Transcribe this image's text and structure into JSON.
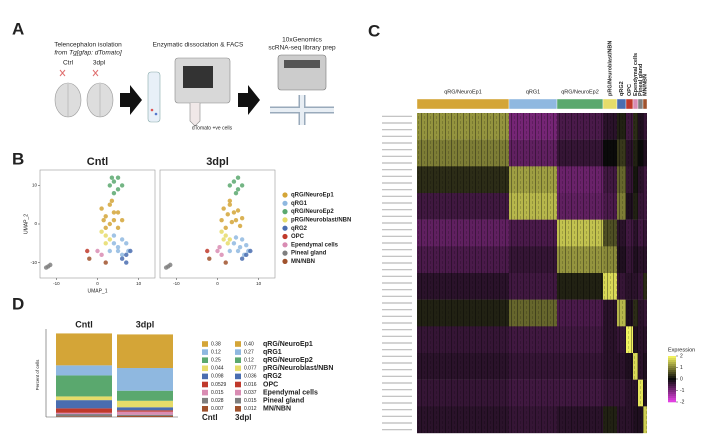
{
  "panel_labels": [
    "A",
    "B",
    "C",
    "D"
  ],
  "schematic": {
    "step1": [
      "Telencephalon isolation",
      "from Tg[gfap: dTomato]"
    ],
    "conditions": [
      "Ctrl",
      "3dpl"
    ],
    "step2": "Enzymatic dissociation & FACS",
    "sorted": "dTomato +ve cells",
    "step3": [
      "10xGenomics",
      "scRNA-seq library prep"
    ]
  },
  "chart_data": [
    {
      "type": "scatter",
      "xlabel": "UMAP_1",
      "ylabel": "UMAP_2",
      "xlim": [
        -14,
        14
      ],
      "ylim": [
        -14,
        14
      ],
      "xticks": [
        -10,
        0,
        10
      ],
      "yticks": [
        -10,
        0,
        10
      ],
      "series": [
        {
          "name": "qRG/NeuroEp1",
          "color": "#d4a537"
        },
        {
          "name": "qRG1",
          "color": "#8fb8e0"
        },
        {
          "name": "qRG/NeuroEp2",
          "color": "#5aa86e"
        },
        {
          "name": "pRG/Neuroblast/NBN",
          "color": "#e6dc6a"
        },
        {
          "name": "qRG2",
          "color": "#4a6db0"
        },
        {
          "name": "OPC",
          "color": "#c0392b"
        },
        {
          "name": "Ependymal cells",
          "color": "#d98cb3"
        },
        {
          "name": "Pineal gland",
          "color": "#7f7f7f"
        },
        {
          "name": "MN/NBN",
          "color": "#a0522d"
        }
      ],
      "panels": [
        {
          "title": "Cntl",
          "points": [
            {
              "x": [
                1,
                2,
                3,
                4,
                5,
                2,
                3,
                4,
                6,
                1.5,
                3.5,
                5
              ],
              "y": [
                4,
                2,
                5,
                1,
                3,
                -1,
                0,
                3,
                1,
                1,
                6,
                -1
              ]
            },
            {
              "x": [
                4,
                5,
                6,
                7,
                5,
                6,
                3,
                4,
                7.5
              ],
              "y": [
                -5,
                -6,
                -4,
                -5,
                -7,
                -8,
                -7,
                -3,
                -7
              ]
            },
            {
              "x": [
                3,
                4,
                5,
                6,
                4,
                5,
                3.5
              ],
              "y": [
                10,
                11,
                9,
                10,
                8,
                12,
                12
              ]
            },
            {
              "x": [
                2,
                3,
                1,
                2
              ],
              "y": [
                -3,
                -4,
                -2,
                -5
              ]
            },
            {
              "x": [
                6,
                7,
                8,
                7
              ],
              "y": [
                -9,
                -8,
                -7,
                -10
              ]
            },
            {
              "x": [
                -2.5
              ],
              "y": [
                -7
              ]
            },
            {
              "x": [
                0,
                1
              ],
              "y": [
                -7,
                -8
              ]
            },
            {
              "x": [
                -12,
                -11.5,
                -12.5
              ],
              "y": [
                -11,
                -10.6,
                -11.3
              ]
            },
            {
              "x": [
                -2,
                2
              ],
              "y": [
                -9,
                -10
              ]
            }
          ]
        },
        {
          "title": "3dpl",
          "points": [
            {
              "x": [
                1.5,
                2.5,
                3,
                4.5,
                5,
                2,
                3.5,
                4,
                6,
                1,
                3,
                5.5
              ],
              "y": [
                4,
                2.5,
                5,
                1,
                3.5,
                -1,
                0.5,
                3,
                1.5,
                1,
                6,
                -0.5
              ]
            },
            {
              "x": [
                4,
                5.5,
                6,
                7,
                5,
                6.5,
                3,
                4.5,
                7.5
              ],
              "y": [
                -5,
                -6,
                -4,
                -5.5,
                -7,
                -8,
                -7,
                -3.5,
                -7
              ]
            },
            {
              "x": [
                3,
                4,
                5,
                6,
                4.5,
                5
              ],
              "y": [
                10,
                11,
                9,
                10,
                8,
                12
              ]
            },
            {
              "x": [
                2,
                3,
                1,
                2.5,
                1.5
              ],
              "y": [
                -3,
                -4,
                -2,
                -5,
                -4
              ]
            },
            {
              "x": [
                6,
                7,
                8
              ],
              "y": [
                -9,
                -8,
                -7
              ]
            },
            {
              "x": [
                -2.5
              ],
              "y": [
                -7
              ]
            },
            {
              "x": [
                0,
                1,
                0.5
              ],
              "y": [
                -7,
                -8,
                -6
              ]
            },
            {
              "x": [
                -12,
                -11.5,
                -12.5
              ],
              "y": [
                -11,
                -10.6,
                -11.3
              ]
            },
            {
              "x": [
                -2,
                2
              ],
              "y": [
                -9,
                -10
              ]
            }
          ]
        }
      ]
    },
    {
      "type": "heatmap",
      "legend_title": "Expression",
      "clim": [
        -2,
        2
      ],
      "cticks": [
        2,
        1,
        0,
        -1,
        -2
      ],
      "categories": [
        "qRG/NeuroEp1",
        "qRG1",
        "qRG/NeuroEp2",
        "pRG/Neuroblast/NBN",
        "qRG2",
        "OPC",
        "Ependymal cells",
        "Pineal gland",
        "MN/NBN"
      ],
      "colors": [
        "#d4a537",
        "#8fb8e0",
        "#5aa86e",
        "#e6dc6a",
        "#4a6db0",
        "#c0392b",
        "#d98cb3",
        "#7f7f7f",
        "#a0522d"
      ],
      "values": [
        [
          1.2,
          -1.0,
          -0.6,
          -0.3,
          0.2,
          -0.5,
          0.3,
          -0.2,
          -0.4
        ],
        [
          1.0,
          -0.8,
          -0.4,
          0.0,
          0.4,
          -0.3,
          0.2,
          0.0,
          -0.2
        ],
        [
          0.3,
          1.3,
          -0.9,
          -0.5,
          0.8,
          -0.4,
          0.1,
          -0.3,
          -0.5
        ],
        [
          -0.5,
          1.5,
          -0.8,
          -0.6,
          1.0,
          -0.2,
          0.2,
          -0.4,
          -0.5
        ],
        [
          -0.8,
          -0.6,
          1.6,
          0.6,
          -0.3,
          -0.5,
          -0.3,
          -0.5,
          -0.4
        ],
        [
          -0.6,
          -0.4,
          1.2,
          1.1,
          -0.2,
          -0.4,
          -0.2,
          -0.3,
          -0.3
        ],
        [
          -0.3,
          -0.5,
          0.2,
          1.8,
          -0.4,
          -0.3,
          -0.3,
          -0.4,
          0.3
        ],
        [
          0.2,
          0.8,
          -0.6,
          -0.3,
          1.5,
          -0.2,
          0.3,
          -0.3,
          -0.4
        ],
        [
          -0.4,
          -0.5,
          -0.5,
          -0.3,
          -0.4,
          2.0,
          -0.2,
          -0.3,
          -0.3
        ],
        [
          -0.3,
          -0.4,
          -0.4,
          -0.3,
          -0.3,
          -0.2,
          1.8,
          -0.3,
          -0.2
        ],
        [
          -0.4,
          -0.5,
          -0.5,
          -0.4,
          -0.4,
          -0.3,
          -0.3,
          1.9,
          -0.2
        ],
        [
          -0.3,
          -0.4,
          -0.3,
          0.2,
          -0.3,
          -0.3,
          -0.2,
          -0.2,
          1.7
        ]
      ]
    },
    {
      "type": "stacked_bar",
      "ylabel": "Percent of cells",
      "ylim": [
        0,
        1
      ],
      "categories": [
        "Cntl",
        "3dpl"
      ],
      "series": [
        {
          "name": "qRG/NeuroEp1",
          "color": "#d4a537",
          "values": [
            0.38,
            0.4
          ],
          "value_labels": [
            "0.38",
            "0.40"
          ]
        },
        {
          "name": "qRG1",
          "color": "#8fb8e0",
          "values": [
            0.12,
            0.27
          ]
        },
        {
          "name": "qRG/NeuroEp2",
          "color": "#5aa86e",
          "values": [
            0.25,
            0.12
          ]
        },
        {
          "name": "pRG/Neuroblast/NBN",
          "color": "#e6dc6a",
          "values": [
            0.044,
            0.077
          ]
        },
        {
          "name": "qRG2",
          "color": "#4a6db0",
          "values": [
            0.098,
            0.036
          ]
        },
        {
          "name": "OPC",
          "color": "#c0392b",
          "values": [
            0.0529,
            0.016
          ]
        },
        {
          "name": "Ependymal cells",
          "color": "#d98cb3",
          "values": [
            0.015,
            0.037
          ]
        },
        {
          "name": "Pineal gland",
          "color": "#7f7f7f",
          "values": [
            0.028,
            0.015
          ]
        },
        {
          "name": "MN/NBN",
          "color": "#a0522d",
          "values": [
            0.007,
            0.012
          ]
        }
      ]
    }
  ]
}
